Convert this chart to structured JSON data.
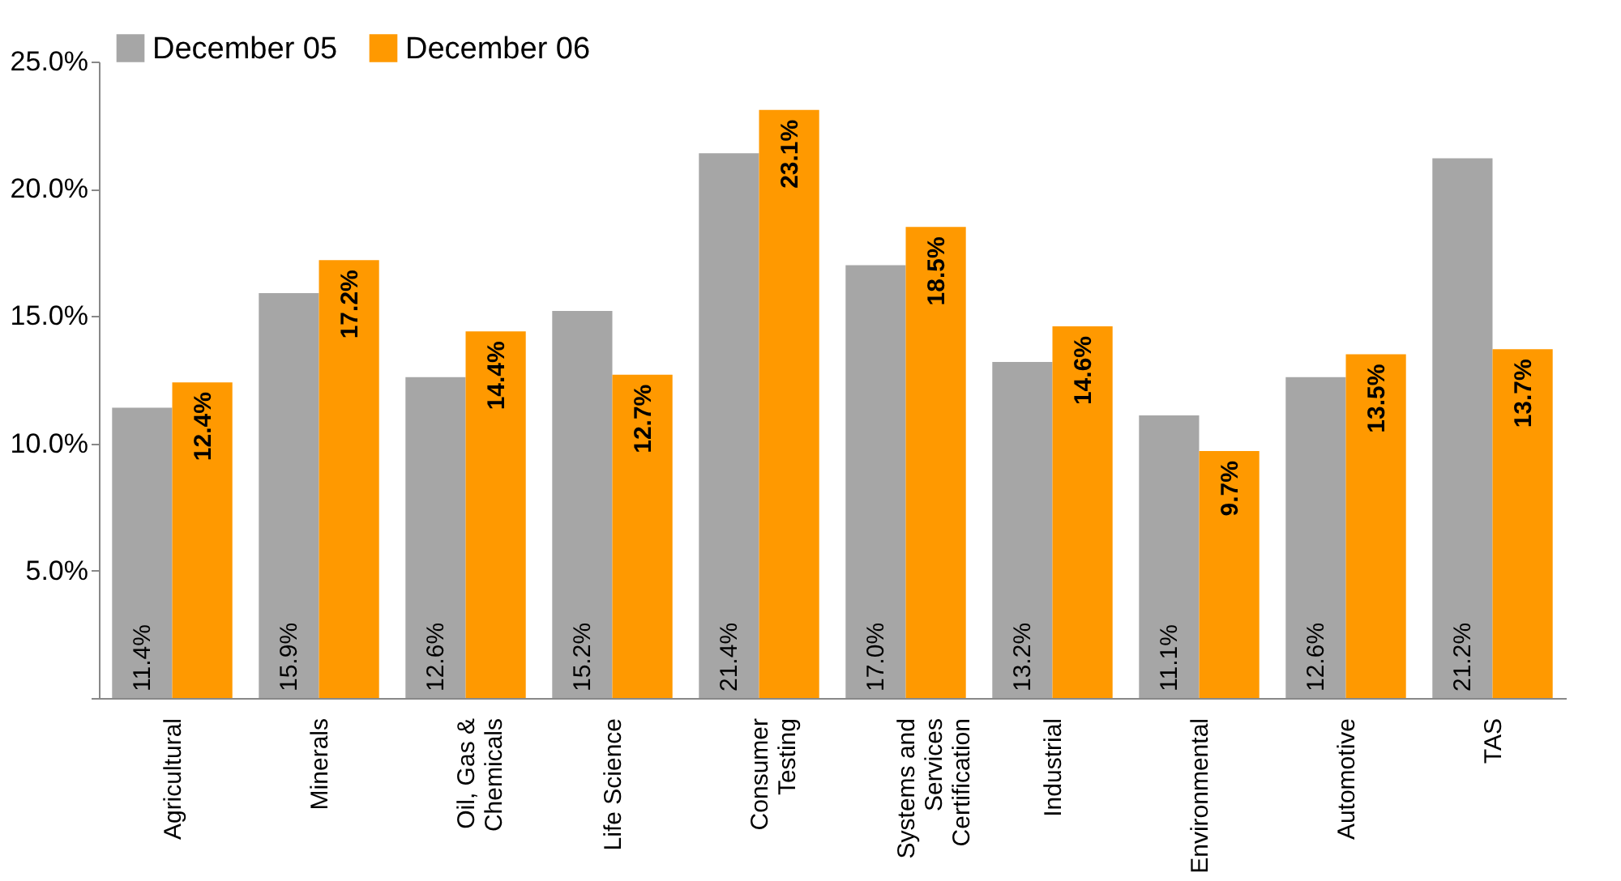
{
  "chart_data": {
    "type": "bar",
    "categories": [
      "Agricultural",
      "Minerals",
      "Oil, Gas & Chemicals",
      "Life Science",
      "Consumer Testing",
      "Systems and Services Certification",
      "Industrial",
      "Environmental",
      "Automotive",
      "TAS"
    ],
    "series": [
      {
        "name": "December 05",
        "color": "#a6a6a6",
        "values": [
          11.4,
          15.9,
          12.6,
          15.2,
          21.4,
          17.0,
          13.2,
          11.1,
          12.6,
          21.2
        ],
        "value_labels": [
          "11.4%",
          "15.9%",
          "12.6%",
          "15.2%",
          "21.4%",
          "17.0%",
          "13.2%",
          "11.1%",
          "12.6%",
          "21.2%"
        ]
      },
      {
        "name": "December 06",
        "color": "#ff9900",
        "values": [
          12.4,
          17.2,
          14.4,
          12.7,
          23.1,
          18.5,
          14.6,
          9.7,
          13.5,
          13.7
        ],
        "value_labels": [
          "12.4%",
          "17.2%",
          "14.4%",
          "12.7%",
          "23.1%",
          "18.5%",
          "14.6%",
          "9.7%",
          "13.5%",
          "13.7%"
        ]
      }
    ],
    "ylim": [
      0,
      25
    ],
    "yticks": [
      {
        "value": 0,
        "label": null
      },
      {
        "value": 5,
        "label": "5.0%"
      },
      {
        "value": 10,
        "label": "10.0%"
      },
      {
        "value": 15,
        "label": "15.0%"
      },
      {
        "value": 20,
        "label": "20.0%"
      },
      {
        "value": 25,
        "label": "25.0%"
      }
    ],
    "grid": false,
    "legend": "top left"
  }
}
